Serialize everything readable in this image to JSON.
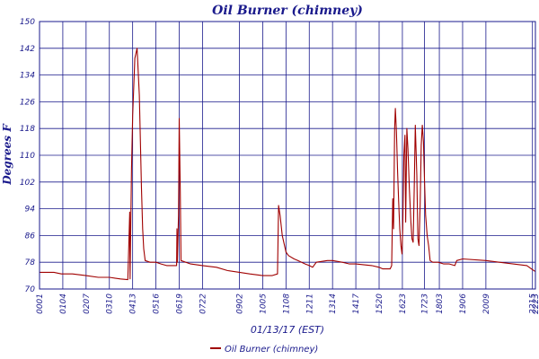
{
  "chart_data": {
    "type": "line",
    "title": "Oil Burner (chimney)",
    "xlabel": "01/13/17 (EST)",
    "ylabel": "Degrees F",
    "ylim": [
      70,
      150
    ],
    "yticks": [
      70,
      78,
      86,
      94,
      102,
      110,
      118,
      126,
      134,
      142,
      150
    ],
    "x_range": [
      "0001",
      "2223"
    ],
    "xticks": [
      "0001",
      "0104",
      "0207",
      "0310",
      "0413",
      "0516",
      "0619",
      "0722",
      "0902",
      "1005",
      "1108",
      "1211",
      "1314",
      "1417",
      "1520",
      "1623",
      "1723",
      "1803",
      "1906",
      "2009",
      "2215",
      "2223"
    ],
    "grid": true,
    "legend_position": "bottom-center",
    "series": [
      {
        "name": "Oil Burner (chimney)",
        "color": "#a00000",
        "points": [
          [
            "0001",
            75.0
          ],
          [
            "0040",
            75.0
          ],
          [
            "0100",
            74.5
          ],
          [
            "0130",
            74.5
          ],
          [
            "0207",
            74.0
          ],
          [
            "0240",
            73.5
          ],
          [
            "0310",
            73.5
          ],
          [
            "0340",
            73.0
          ],
          [
            "0400",
            72.8
          ],
          [
            "0405",
            93.0
          ],
          [
            "0406",
            73.0
          ],
          [
            "0410",
            106.0
          ],
          [
            "0413",
            122.0
          ],
          [
            "0419",
            139.0
          ],
          [
            "0425",
            142.0
          ],
          [
            "0431",
            128.0
          ],
          [
            "0437",
            100.0
          ],
          [
            "0440",
            88.0
          ],
          [
            "0443",
            82.0
          ],
          [
            "0447",
            78.5
          ],
          [
            "0500",
            78.0
          ],
          [
            "0516",
            78.0
          ],
          [
            "0530",
            77.5
          ],
          [
            "0545",
            77.0
          ],
          [
            "0600",
            77.0
          ],
          [
            "0612",
            77.0
          ],
          [
            "0613",
            88.0
          ],
          [
            "0614",
            78.0
          ],
          [
            "0617",
            92.0
          ],
          [
            "0619",
            121.0
          ],
          [
            "0622",
            99.0
          ],
          [
            "0624",
            78.5
          ],
          [
            "0650",
            77.5
          ],
          [
            "0722",
            77.0
          ],
          [
            "0800",
            76.5
          ],
          [
            "0830",
            75.5
          ],
          [
            "0902",
            75.0
          ],
          [
            "0930",
            74.5
          ],
          [
            "1005",
            74.0
          ],
          [
            "1030",
            74.0
          ],
          [
            "1045",
            74.5
          ],
          [
            "1048",
            95.0
          ],
          [
            "1052",
            92.0
          ],
          [
            "1058",
            86.0
          ],
          [
            "1108",
            81.0
          ],
          [
            "1115",
            80.0
          ],
          [
            "1130",
            79.0
          ],
          [
            "1140",
            78.5
          ],
          [
            "1200",
            77.5
          ],
          [
            "1211",
            77.0
          ],
          [
            "1220",
            76.5
          ],
          [
            "1230",
            78.0
          ],
          [
            "1300",
            78.5
          ],
          [
            "1314",
            78.5
          ],
          [
            "1340",
            78.0
          ],
          [
            "1400",
            77.5
          ],
          [
            "1417",
            77.5
          ],
          [
            "1500",
            77.0
          ],
          [
            "1520",
            76.5
          ],
          [
            "1530",
            76.0
          ],
          [
            "1550",
            76.0
          ],
          [
            "1554",
            77.0
          ],
          [
            "1557",
            97.0
          ],
          [
            "1559",
            88.0
          ],
          [
            "1602",
            118.0
          ],
          [
            "1604",
            124.0
          ],
          [
            "1607",
            117.0
          ],
          [
            "1610",
            105.0
          ],
          [
            "1613",
            96.0
          ],
          [
            "1616",
            88.0
          ],
          [
            "1619",
            83.0
          ],
          [
            "1622",
            80.5
          ],
          [
            "1624",
            88.0
          ],
          [
            "1627",
            110.0
          ],
          [
            "1630",
            116.0
          ],
          [
            "1632",
            90.0
          ],
          [
            "1635",
            118.0
          ],
          [
            "1638",
            112.0
          ],
          [
            "1642",
            100.0
          ],
          [
            "1646",
            90.0
          ],
          [
            "1649",
            85.0
          ],
          [
            "1652",
            84.0
          ],
          [
            "1655",
            100.0
          ],
          [
            "1658",
            119.0
          ],
          [
            "1702",
            104.0
          ],
          [
            "1705",
            85.0
          ],
          [
            "1708",
            83.0
          ],
          [
            "1711",
            95.0
          ],
          [
            "1714",
            113.0
          ],
          [
            "1717",
            119.0
          ],
          [
            "1720",
            114.0
          ],
          [
            "1723",
            102.0
          ],
          [
            "1726",
            92.0
          ],
          [
            "1730",
            86.0
          ],
          [
            "1734",
            83.0
          ],
          [
            "1738",
            78.5
          ],
          [
            "1745",
            78.0
          ],
          [
            "1800",
            78.0
          ],
          [
            "1815",
            77.5
          ],
          [
            "1830",
            77.5
          ],
          [
            "1845",
            77.0
          ],
          [
            "1850",
            78.5
          ],
          [
            "1906",
            79.0
          ],
          [
            "2009",
            78.5
          ],
          [
            "2100",
            77.8
          ],
          [
            "2200",
            77.0
          ],
          [
            "2215",
            75.8
          ],
          [
            "2223",
            75.2
          ]
        ]
      }
    ]
  }
}
